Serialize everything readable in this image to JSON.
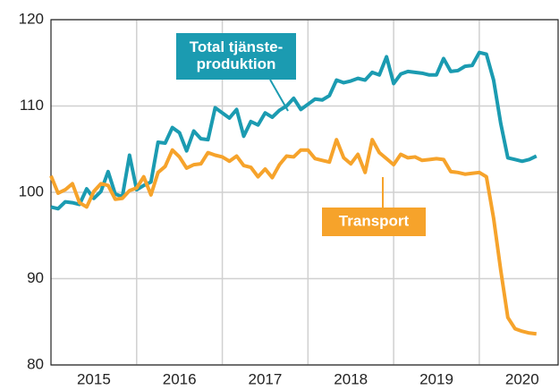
{
  "chart_data": {
    "type": "line",
    "x": [
      2015,
      2015.083,
      2015.167,
      2015.25,
      2015.333,
      2015.417,
      2015.5,
      2015.583,
      2015.667,
      2015.75,
      2015.833,
      2015.917,
      2016,
      2016.083,
      2016.167,
      2016.25,
      2016.333,
      2016.417,
      2016.5,
      2016.583,
      2016.667,
      2016.75,
      2016.833,
      2016.917,
      2017,
      2017.083,
      2017.167,
      2017.25,
      2017.333,
      2017.417,
      2017.5,
      2017.583,
      2017.667,
      2017.75,
      2017.833,
      2017.917,
      2018,
      2018.083,
      2018.167,
      2018.25,
      2018.333,
      2018.417,
      2018.5,
      2018.583,
      2018.667,
      2018.75,
      2018.833,
      2018.917,
      2019,
      2019.083,
      2019.167,
      2019.25,
      2019.333,
      2019.417,
      2019.5,
      2019.583,
      2019.667,
      2019.75,
      2019.833,
      2019.917,
      2020,
      2020.083,
      2020.167,
      2020.25,
      2020.333,
      2020.417,
      2020.5,
      2020.583,
      2020.667
    ],
    "series": [
      {
        "color": "#1b9bb1",
        "values": [
          98.3,
          98.1,
          98.9,
          98.8,
          98.6,
          100.4,
          99.3,
          100.1,
          102.4,
          99.8,
          99.5,
          104.3,
          100.3,
          100.8,
          101.2,
          105.8,
          105.7,
          107.5,
          106.9,
          104.8,
          107.1,
          106.2,
          106.1,
          109.8,
          109.2,
          108.6,
          109.6,
          106.5,
          108.2,
          107.8,
          109.2,
          108.7,
          109.5,
          110.0,
          110.9,
          109.6,
          110.2,
          110.8,
          110.7,
          111.2,
          113.0,
          112.7,
          112.9,
          113.2,
          113.0,
          113.9,
          113.6,
          115.7,
          112.6,
          113.7,
          114.0,
          113.9,
          113.8,
          113.6,
          113.6,
          115.5,
          114.0,
          114.1,
          114.6,
          114.7,
          116.2,
          116.0,
          113.0,
          108.0,
          104.0,
          103.8,
          103.6,
          103.8,
          104.2
        ]
      },
      {
        "color": "#f6a32b",
        "values": [
          101.9,
          99.9,
          100.3,
          101.0,
          98.8,
          98.3,
          100.1,
          101.0,
          100.8,
          99.2,
          99.3,
          100.2,
          100.5,
          101.8,
          99.7,
          102.3,
          103.0,
          104.9,
          104.1,
          102.8,
          103.2,
          103.3,
          104.6,
          104.3,
          104.1,
          103.6,
          104.2,
          103.1,
          102.9,
          101.8,
          102.7,
          101.7,
          103.2,
          104.2,
          104.1,
          104.9,
          104.9,
          103.9,
          103.7,
          103.5,
          106.1,
          104.0,
          103.3,
          104.4,
          102.3,
          106.1,
          104.6,
          103.9,
          103.2,
          104.4,
          104.0,
          104.1,
          103.7,
          103.8,
          103.9,
          103.8,
          102.4,
          102.3,
          102.1,
          102.2,
          102.3,
          101.8,
          97.0,
          91.0,
          85.5,
          84.2,
          83.9,
          83.7,
          83.6
        ]
      }
    ],
    "annotations": [
      {
        "lines": [
          "Total tjänste-",
          "produktion"
        ]
      },
      {
        "lines": [
          "Transport"
        ]
      }
    ],
    "xlim": [
      2015,
      2020.92
    ],
    "xticks": [
      {
        "value": 2015.5,
        "label": "2015"
      },
      {
        "value": 2016.5,
        "label": "2016"
      },
      {
        "value": 2017.5,
        "label": "2017"
      },
      {
        "value": 2018.5,
        "label": "2018"
      },
      {
        "value": 2019.5,
        "label": "2019"
      },
      {
        "value": 2020.5,
        "label": "2020"
      }
    ],
    "xgrid": [
      2016,
      2017,
      2018,
      2019,
      2020
    ],
    "ylim": [
      80,
      120
    ],
    "yticks": [
      80,
      90,
      100,
      110,
      120
    ],
    "grid": true
  }
}
